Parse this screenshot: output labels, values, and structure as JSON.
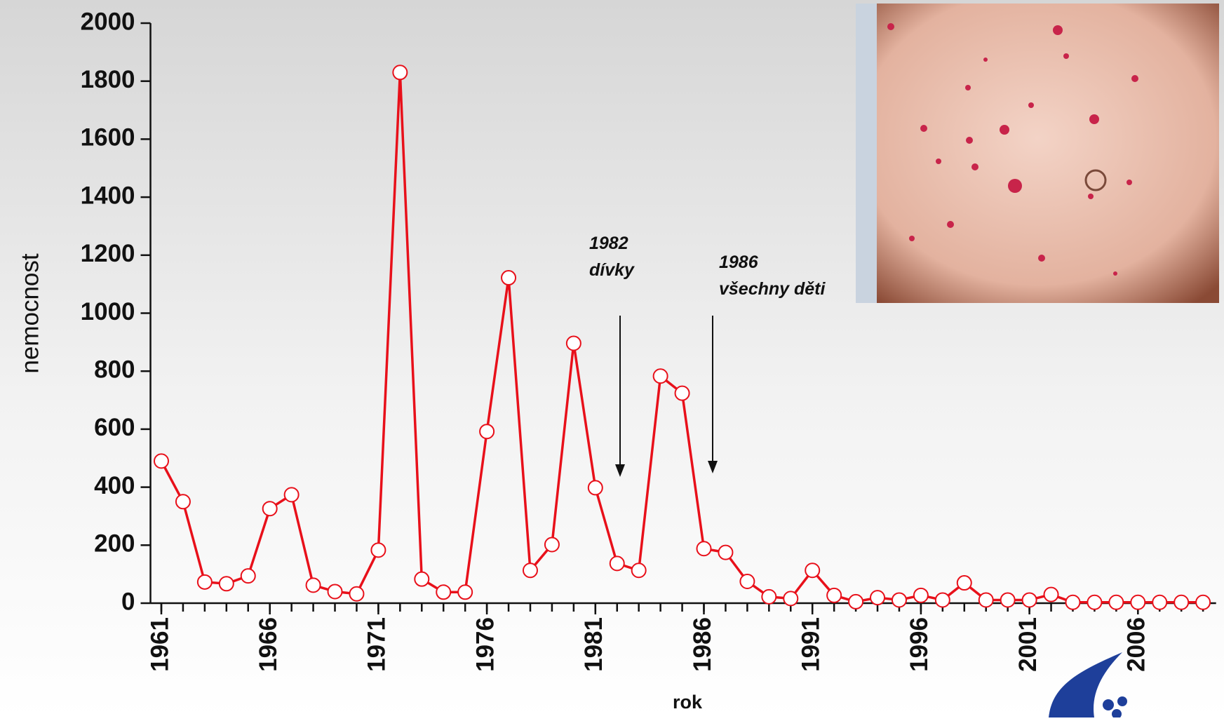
{
  "chart_data": {
    "type": "line",
    "x": [
      1961,
      1962,
      1963,
      1964,
      1965,
      1966,
      1967,
      1968,
      1969,
      1970,
      1971,
      1972,
      1973,
      1974,
      1975,
      1976,
      1977,
      1978,
      1979,
      1980,
      1981,
      1982,
      1983,
      1984,
      1985,
      1986,
      1987,
      1988,
      1989,
      1990,
      1991,
      1992,
      1993,
      1994,
      1995,
      1996,
      1997,
      1998,
      1999,
      2000,
      2001,
      2002,
      2003,
      2004,
      2005,
      2006,
      2007,
      2008,
      2009
    ],
    "series": [
      {
        "color": "#e8101a",
        "values": [
          490,
          350,
          73,
          67,
          94,
          326,
          374,
          62,
          40,
          32,
          183,
          1830,
          83,
          38,
          38,
          592,
          1122,
          113,
          202,
          896,
          398,
          137,
          113,
          783,
          724,
          188,
          175,
          75,
          22,
          16,
          113,
          27,
          5,
          19,
          11,
          27,
          11,
          70,
          11,
          11,
          11,
          30,
          3,
          3,
          3,
          3,
          3,
          3,
          3
        ]
      }
    ],
    "xlim": [
      1960.5,
      2009.6
    ],
    "xticks": [
      1961,
      1966,
      1971,
      1976,
      1981,
      1986,
      1991,
      1996,
      2001,
      2006
    ],
    "ylim": [
      0,
      2000
    ],
    "yticks": [
      0,
      200,
      400,
      600,
      800,
      1000,
      1200,
      1400,
      1600,
      1800,
      2000
    ],
    "y_label": "nemocnost",
    "x_label": "rok",
    "annotations": [
      [
        "1982",
        "dívky"
      ],
      [
        "1986",
        "všechny děti"
      ]
    ]
  }
}
